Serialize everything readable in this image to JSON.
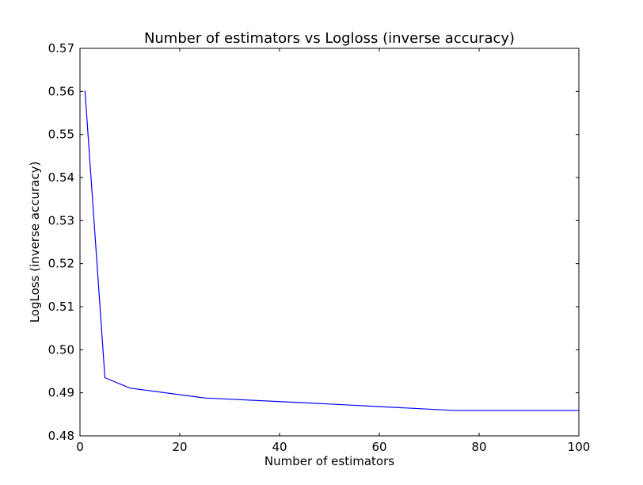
{
  "chart_data": {
    "type": "line",
    "title": "Number of estimators vs Logloss (inverse accuracy)",
    "xlabel": "Number of estimators",
    "ylabel": "LogLoss (inverse accuracy)",
    "xlim": [
      0,
      100
    ],
    "ylim": [
      0.48,
      0.57
    ],
    "xticks": [
      0,
      20,
      40,
      60,
      80,
      100
    ],
    "yticks": [
      0.48,
      0.49,
      0.5,
      0.51,
      0.52,
      0.53,
      0.54,
      0.55,
      0.56,
      0.57
    ],
    "xtick_labels": [
      "0",
      "20",
      "40",
      "60",
      "80",
      "100"
    ],
    "ytick_labels": [
      "0.48",
      "0.49",
      "0.50",
      "0.51",
      "0.52",
      "0.53",
      "0.54",
      "0.55",
      "0.56",
      "0.57"
    ],
    "grid": false,
    "series": [
      {
        "color": "#0000ff",
        "x": [
          1,
          5,
          10,
          25,
          50,
          75,
          100
        ],
        "y": [
          0.5602,
          0.4935,
          0.4911,
          0.4888,
          0.4874,
          0.4859,
          0.4859
        ]
      }
    ]
  }
}
